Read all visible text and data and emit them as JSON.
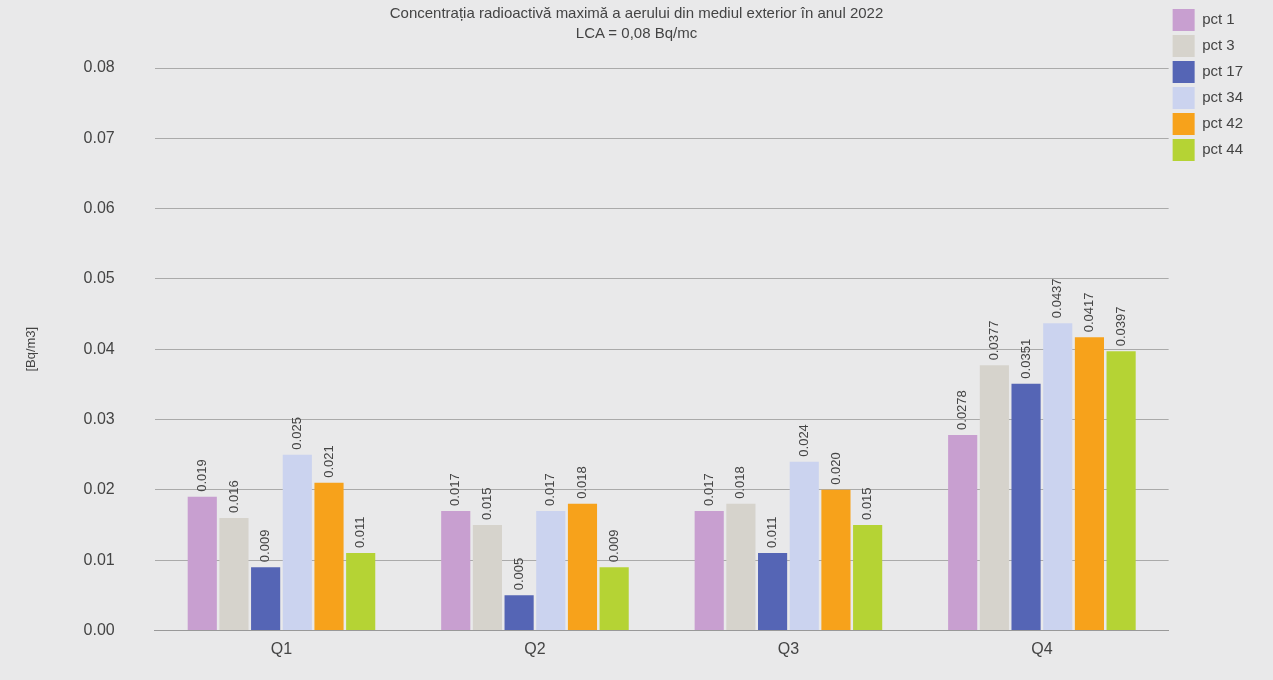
{
  "chart_data": {
    "type": "bar",
    "title": "Concentrația radioactivă maximă a aerului din mediul exterior în anul 2022",
    "subtitle": "LCA = 0,08 Bq/mc",
    "ylabel": "[Bq/m3]",
    "categories": [
      "Q1",
      "Q2",
      "Q3",
      "Q4"
    ],
    "series": [
      {
        "name": "pct 1",
        "color": "#c89fd0",
        "values": [
          0.019,
          0.017,
          0.017,
          0.0278
        ],
        "value_labels": [
          "0.019",
          "0.017",
          "0.017",
          "0.0278"
        ]
      },
      {
        "name": "pct 3",
        "color": "#d6d3cc",
        "values": [
          0.016,
          0.015,
          0.018,
          0.0377
        ],
        "value_labels": [
          "0.016",
          "0.015",
          "0.018",
          "0.0377"
        ]
      },
      {
        "name": "pct 17",
        "color": "#5565b5",
        "values": [
          0.009,
          0.005,
          0.011,
          0.0351
        ],
        "value_labels": [
          "0.009",
          "0.005",
          "0.011",
          "0.0351"
        ]
      },
      {
        "name": "pct 34",
        "color": "#cbd3ef",
        "values": [
          0.025,
          0.017,
          0.024,
          0.0437
        ],
        "value_labels": [
          "0.025",
          "0.017",
          "0.024",
          "0.0437"
        ]
      },
      {
        "name": "pct 42",
        "color": "#f7a21b",
        "values": [
          0.021,
          0.018,
          0.02,
          0.0417
        ],
        "value_labels": [
          "0.021",
          "0.018",
          "0.020",
          "0.0417"
        ]
      },
      {
        "name": "pct 44",
        "color": "#b5d334",
        "values": [
          0.011,
          0.009,
          0.015,
          0.0397
        ],
        "value_labels": [
          "0.011",
          "0.009",
          "0.015",
          "0.0397"
        ]
      }
    ],
    "ylim": [
      0,
      0.08
    ],
    "yticks": [
      {
        "value": 0,
        "label": "0.00"
      },
      0.01,
      0.02,
      0.03,
      0.04,
      0.05,
      0.06,
      0.07,
      0.08
    ],
    "grid": "y",
    "legend": "top right"
  }
}
